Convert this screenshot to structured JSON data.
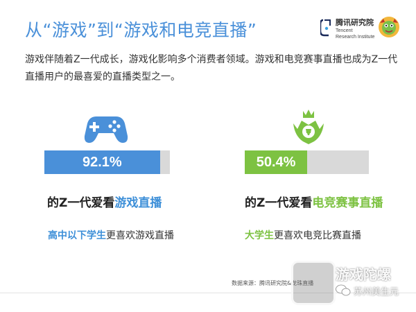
{
  "header": {
    "title": "从“游戏”到“游戏和电竞直播”",
    "logo": {
      "name_cn": "腾讯研究院",
      "name_en_1": "Tencent",
      "name_en_2": "Research Institute"
    }
  },
  "intro": "游戏伴随着Z一代成长，游戏化影响多个消费者领域。游戏和电竞赛事直播也成为Z一代直播用户的最喜爱的直播类型之一。",
  "stats": {
    "left": {
      "value_text": "92.1%",
      "value_fraction": 0.921,
      "label_prefix": "的Z一代爱看",
      "label_highlight": "游戏直播",
      "sub_highlight": "高中以下学生",
      "sub_rest": "更喜欢游戏直播",
      "icon": "gamepad-icon"
    },
    "right": {
      "value_text": "50.4%",
      "value_fraction": 0.504,
      "label_prefix": "的Z一代爱看",
      "label_highlight": "电竞赛事直播",
      "sub_highlight": "大学生",
      "sub_rest": "更喜欢电竞比赛直播",
      "icon": "trophy-crown-icon"
    }
  },
  "colors": {
    "title": "#4a90d9",
    "blue": "#4a90d9",
    "green": "#7dc242",
    "track": "#d9d9d9"
  },
  "footer": {
    "source": "数据来源：腾讯研究院&龙珠直播",
    "watermark_1": "游戏陀螺",
    "watermark_2": "苏州美生元"
  }
}
